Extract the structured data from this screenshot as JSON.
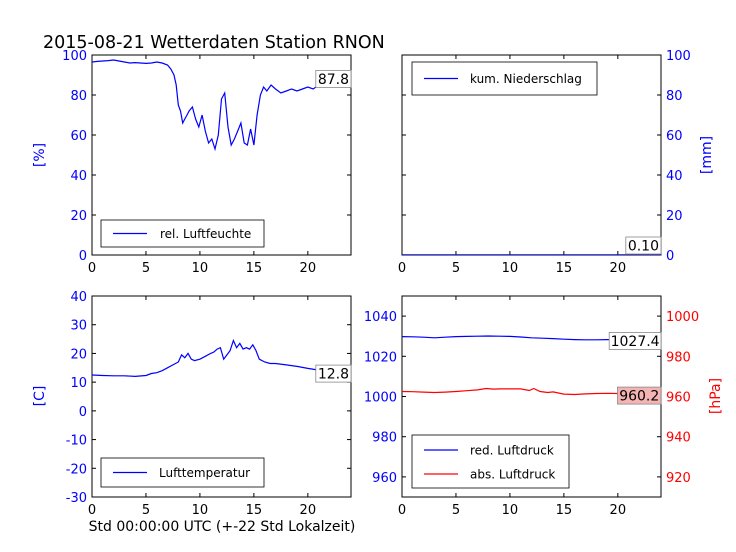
{
  "figure": {
    "title": "2015-08-21 Wetterdaten Station RNON",
    "xlabel": "Std 00:00:00 UTC (+-22 Std Lokalzeit)"
  },
  "colors": {
    "blue": "#0000ff",
    "red": "#ff0000",
    "label_box_red": "#f4b4b4",
    "text": "#000000"
  },
  "chart_data": [
    {
      "type": "line",
      "panel": "humidity",
      "ylabel": "[%]",
      "xlim": [
        0,
        24
      ],
      "ylim": [
        0,
        100
      ],
      "xticks": [
        0,
        5,
        10,
        15,
        20
      ],
      "yticks": [
        0,
        20,
        40,
        60,
        80,
        100
      ],
      "legend_position": "lower-left",
      "last_value_label": "87.8",
      "series": [
        {
          "name": "rel. Luftfeuchte",
          "color": "#0000ff",
          "x": [
            0,
            0.5,
            1,
            1.5,
            2,
            2.5,
            3,
            3.5,
            4,
            4.5,
            5,
            5.5,
            6,
            6.5,
            7,
            7.3,
            7.6,
            7.8,
            8.0,
            8.2,
            8.4,
            8.6,
            8.8,
            9.0,
            9.3,
            9.6,
            9.9,
            10.2,
            10.5,
            10.8,
            11.1,
            11.4,
            11.7,
            12.0,
            12.3,
            12.6,
            12.9,
            13.2,
            13.5,
            13.8,
            14.1,
            14.4,
            14.7,
            15.0,
            15.3,
            15.6,
            15.9,
            16.2,
            16.6,
            17.0,
            17.5,
            18.0,
            18.5,
            19.0,
            19.5,
            20.0,
            20.5,
            21.0,
            21.5,
            22.0,
            22.5,
            23.0,
            23.5,
            24.0
          ],
          "y": [
            96.5,
            96.8,
            97.0,
            97.2,
            97.5,
            97.0,
            96.5,
            96.0,
            96.2,
            96.0,
            95.8,
            96.0,
            96.5,
            96.0,
            95.0,
            93.0,
            90.0,
            85.0,
            75.0,
            72.0,
            66.0,
            68.0,
            70.0,
            72.0,
            74.0,
            68.0,
            64.0,
            70.0,
            62.0,
            56.0,
            58.0,
            53.0,
            60.0,
            78.0,
            81.0,
            64.0,
            55.0,
            58.0,
            62.0,
            66.0,
            56.0,
            55.0,
            63.0,
            55.0,
            70.0,
            80.0,
            84.0,
            82.0,
            85.0,
            83.0,
            81.0,
            82.0,
            83.0,
            82.0,
            83.0,
            84.0,
            83.0,
            85.0,
            84.0,
            86.0,
            85.0,
            86.0,
            86.5,
            87.8
          ]
        }
      ]
    },
    {
      "type": "line",
      "panel": "precipitation",
      "ylabel": "[mm]",
      "xlim": [
        0,
        24
      ],
      "ylim": [
        0,
        100
      ],
      "xticks": [
        0,
        5,
        10,
        15,
        20
      ],
      "yticks": [
        0,
        20,
        40,
        60,
        80,
        100
      ],
      "legend_position": "upper-left",
      "last_value_label": "0.10",
      "series": [
        {
          "name": "kum. Niederschlag",
          "color": "#0000ff",
          "x": [
            0,
            24
          ],
          "y": [
            0.1,
            0.1
          ]
        }
      ]
    },
    {
      "type": "line",
      "panel": "temperature",
      "ylabel": "[C]",
      "xlim": [
        0,
        24
      ],
      "ylim": [
        -30,
        40
      ],
      "xticks": [
        0,
        5,
        10,
        15,
        20
      ],
      "yticks": [
        -30,
        -20,
        -10,
        0,
        10,
        20,
        30,
        40
      ],
      "legend_position": "lower-left",
      "last_value_label": "12.8",
      "series": [
        {
          "name": "Lufttemperatur",
          "color": "#0000ff",
          "x": [
            0,
            1,
            2,
            3,
            4,
            5,
            5.5,
            6,
            6.5,
            7,
            7.5,
            8,
            8.3,
            8.6,
            8.9,
            9.2,
            9.5,
            10.0,
            10.5,
            11.0,
            11.3,
            11.6,
            11.9,
            12.2,
            12.5,
            12.8,
            13.1,
            13.4,
            13.7,
            14.0,
            14.3,
            14.6,
            14.9,
            15.2,
            15.5,
            16.0,
            16.5,
            17.0,
            18.0,
            19.0,
            20.0,
            21.0,
            22.0,
            23.0,
            24.0
          ],
          "y": [
            12.5,
            12.3,
            12.2,
            12.2,
            12.0,
            12.3,
            13.0,
            13.3,
            14.0,
            15.0,
            16.0,
            17.0,
            19.5,
            18.5,
            20.0,
            18.0,
            17.5,
            18.0,
            19.0,
            20.0,
            20.5,
            21.5,
            22.0,
            18.0,
            19.5,
            21.0,
            24.5,
            22.0,
            23.5,
            21.5,
            22.0,
            21.5,
            23.0,
            21.0,
            18.0,
            17.0,
            16.5,
            16.5,
            16.0,
            15.5,
            14.8,
            14.2,
            13.8,
            13.2,
            12.8
          ]
        }
      ]
    },
    {
      "type": "line",
      "panel": "pressure",
      "ylabel": "[hPa]",
      "xlim": [
        0,
        24
      ],
      "ylim_left": [
        950,
        1050
      ],
      "ylim_right": [
        910,
        1010
      ],
      "xticks": [
        0,
        5,
        10,
        15,
        20
      ],
      "yticks_left": [
        960,
        980,
        1000,
        1020,
        1040
      ],
      "yticks_right": [
        920,
        940,
        960,
        980,
        1000
      ],
      "legend_position": "lower-left",
      "series": [
        {
          "name": "red. Luftdruck",
          "axis": "left",
          "color": "#0000ff",
          "last_value_label": "1027.4",
          "x": [
            0,
            1,
            2,
            3,
            4,
            5,
            6,
            7,
            8,
            9,
            10,
            11,
            12,
            13,
            14,
            15,
            16,
            17,
            18,
            19,
            20,
            21,
            22,
            23,
            24
          ],
          "y": [
            1029.8,
            1029.7,
            1029.5,
            1029.2,
            1029.5,
            1029.8,
            1029.9,
            1030.0,
            1030.1,
            1030.0,
            1029.9,
            1029.6,
            1029.2,
            1029.0,
            1028.8,
            1028.5,
            1028.3,
            1028.2,
            1028.2,
            1028.3,
            1028.3,
            1028.0,
            1028.0,
            1027.7,
            1027.4
          ]
        },
        {
          "name": "abs. Luftdruck",
          "axis": "right",
          "color": "#ff0000",
          "last_value_label": "960.2",
          "x": [
            0,
            1,
            2,
            3,
            4,
            5,
            6,
            7,
            7.8,
            8.5,
            9,
            10,
            11,
            11.8,
            12.2,
            12.8,
            13.5,
            14,
            15,
            16,
            17,
            18,
            19,
            20,
            21,
            22,
            23,
            24
          ],
          "y": [
            962.5,
            962.4,
            962.2,
            962.0,
            962.2,
            962.5,
            962.9,
            963.3,
            964.0,
            963.7,
            963.8,
            963.8,
            963.8,
            963.0,
            964.0,
            962.5,
            962.0,
            962.3,
            961.2,
            961.0,
            961.3,
            961.5,
            961.6,
            961.5,
            961.3,
            961.5,
            960.5,
            960.2
          ]
        }
      ]
    }
  ]
}
